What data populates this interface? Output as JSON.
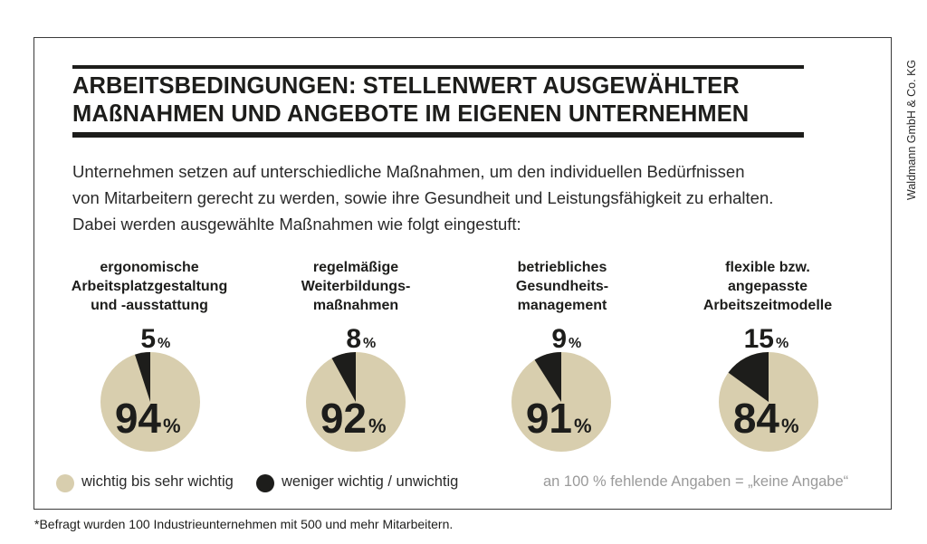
{
  "title": {
    "line1": "ARBEITSBEDINGUNGEN: STELLENWERT AUSGEWÄHLTER",
    "line2": "MAßNAHMEN UND ANGEBOTE IM EIGENEN UNTERNEHMEN"
  },
  "intro": {
    "line1": "Unternehmen setzen auf unterschiedliche Maßnahmen, um den individuellen Bedürfnissen",
    "line2": "von Mitarbeitern gerecht zu werden, sowie ihre Gesundheit und Leistungsfähigkeit zu erhalten.",
    "line3": "Dabei werden ausgewählte Maßnahmen wie folgt eingestuft:"
  },
  "credit": "Waldmann GmbH & Co. KG",
  "colors": {
    "important": "#d8ceae",
    "less_important": "#1d1d1b"
  },
  "chart_data": {
    "type": "pie",
    "unit": "%",
    "legend": [
      {
        "name": "wichtig bis sehr wichtig",
        "color": "#d8ceae"
      },
      {
        "name": "weniger wichtig / unwichtig",
        "color": "#1d1d1b"
      }
    ],
    "legend_position": "bottom",
    "note": "an 100 % fehlende Angaben = „keine Angabe“",
    "pies": [
      {
        "label": [
          "ergonomische",
          "Arbeitsplatzgestaltung",
          "und -ausstattung"
        ],
        "important": 94,
        "less_important": 5
      },
      {
        "label": [
          "regelmäßige",
          "Weiterbildungs-",
          "maßnahmen"
        ],
        "important": 92,
        "less_important": 8
      },
      {
        "label": [
          "betriebliches",
          "Gesundheits-",
          "management"
        ],
        "important": 91,
        "less_important": 9
      },
      {
        "label": [
          "flexible bzw.",
          "angepasste",
          "Arbeitszeitmodelle"
        ],
        "important": 84,
        "less_important": 15
      }
    ]
  },
  "footnote": "*Befragt wurden 100 Industrieunternehmen mit 500 und mehr Mitarbeitern."
}
